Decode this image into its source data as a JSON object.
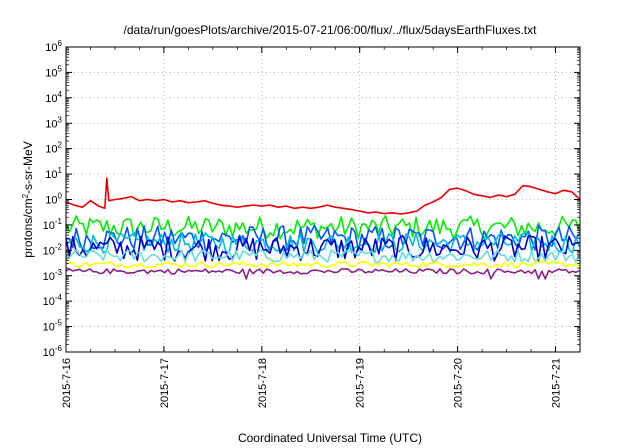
{
  "chart_data": {
    "type": "line",
    "title": "/data/run/goesPlots/archive/2015-07-21/06:00/flux/../flux/5daysEarthFluxes.txt",
    "xlabel": "Coordinated Universal Time (UTC)",
    "ylabel": {
      "text": "protons/cm",
      "sup": "2",
      "rest": "-s-sr-MeV"
    },
    "yscale": "log",
    "ylim": [
      1e-06,
      1000000.0
    ],
    "yticks": [
      {
        "base": "10",
        "exp": "-6"
      },
      {
        "base": "10",
        "exp": "-5"
      },
      {
        "base": "10",
        "exp": "-4"
      },
      {
        "base": "10",
        "exp": "-3"
      },
      {
        "base": "10",
        "exp": "-2"
      },
      {
        "base": "10",
        "exp": "-1"
      },
      {
        "base": "10",
        "exp": "0"
      },
      {
        "base": "10",
        "exp": "1"
      },
      {
        "base": "10",
        "exp": "2"
      },
      {
        "base": "10",
        "exp": "3"
      },
      {
        "base": "10",
        "exp": "4"
      },
      {
        "base": "10",
        "exp": "5"
      },
      {
        "base": "10",
        "exp": "6"
      }
    ],
    "xlim": [
      "2015-07-16T00:00",
      "2015-07-21T06:00"
    ],
    "xticks": [
      "2015-7-16",
      "2015-7-17",
      "2015-7-18",
      "2015-7-19",
      "2015-7-20",
      "2015-7-21"
    ],
    "grid": true,
    "series": [
      {
        "color": "#ee0000",
        "points": [
          [
            "2015-07-16T00:00",
            0.8
          ],
          [
            "2015-07-16T02:00",
            0.6
          ],
          [
            "2015-07-16T04:00",
            0.5
          ],
          [
            "2015-07-16T06:00",
            0.9
          ],
          [
            "2015-07-16T08:00",
            0.55
          ],
          [
            "2015-07-16T09:30",
            0.45
          ],
          [
            "2015-07-16T10:00",
            7.0
          ],
          [
            "2015-07-16T10:30",
            0.9
          ],
          [
            "2015-07-16T12:00",
            1.0
          ],
          [
            "2015-07-16T14:00",
            1.1
          ],
          [
            "2015-07-16T16:00",
            1.3
          ],
          [
            "2015-07-16T18:00",
            0.9
          ],
          [
            "2015-07-16T20:00",
            1.0
          ],
          [
            "2015-07-16T22:00",
            0.9
          ],
          [
            "2015-07-17T00:00",
            1.0
          ],
          [
            "2015-07-17T02:00",
            0.8
          ],
          [
            "2015-07-17T04:00",
            0.9
          ],
          [
            "2015-07-17T06:00",
            0.75
          ],
          [
            "2015-07-17T08:00",
            0.8
          ],
          [
            "2015-07-17T10:00",
            0.9
          ],
          [
            "2015-07-17T12:00",
            0.7
          ],
          [
            "2015-07-17T14:00",
            0.6
          ],
          [
            "2015-07-17T16:00",
            0.55
          ],
          [
            "2015-07-17T18:00",
            0.5
          ],
          [
            "2015-07-17T20:00",
            0.55
          ],
          [
            "2015-07-17T22:00",
            0.6
          ],
          [
            "2015-07-18T00:00",
            0.55
          ],
          [
            "2015-07-18T02:00",
            0.6
          ],
          [
            "2015-07-18T04:00",
            0.5
          ],
          [
            "2015-07-18T06:00",
            0.55
          ],
          [
            "2015-07-18T08:00",
            0.45
          ],
          [
            "2015-07-18T10:00",
            0.5
          ],
          [
            "2015-07-18T12:00",
            0.45
          ],
          [
            "2015-07-18T14:00",
            0.5
          ],
          [
            "2015-07-18T16:00",
            0.6
          ],
          [
            "2015-07-18T18:00",
            0.5
          ],
          [
            "2015-07-18T20:00",
            0.45
          ],
          [
            "2015-07-18T22:00",
            0.4
          ],
          [
            "2015-07-19T00:00",
            0.35
          ],
          [
            "2015-07-19T02:00",
            0.3
          ],
          [
            "2015-07-19T04:00",
            0.32
          ],
          [
            "2015-07-19T06:00",
            0.28
          ],
          [
            "2015-07-19T08:00",
            0.3
          ],
          [
            "2015-07-19T10:00",
            0.27
          ],
          [
            "2015-07-19T12:00",
            0.3
          ],
          [
            "2015-07-19T14:00",
            0.35
          ],
          [
            "2015-07-19T16:00",
            0.6
          ],
          [
            "2015-07-19T18:00",
            0.8
          ],
          [
            "2015-07-19T20:00",
            1.2
          ],
          [
            "2015-07-19T22:00",
            2.5
          ],
          [
            "2015-07-20T00:00",
            2.8
          ],
          [
            "2015-07-20T02:00",
            2.2
          ],
          [
            "2015-07-20T04:00",
            1.6
          ],
          [
            "2015-07-20T06:00",
            1.4
          ],
          [
            "2015-07-20T08:00",
            1.2
          ],
          [
            "2015-07-20T10:00",
            1.5
          ],
          [
            "2015-07-20T12:00",
            1.3
          ],
          [
            "2015-07-20T14:00",
            1.6
          ],
          [
            "2015-07-20T16:00",
            3.5
          ],
          [
            "2015-07-20T18:00",
            3.2
          ],
          [
            "2015-07-20T20:00",
            2.5
          ],
          [
            "2015-07-20T22:00",
            2.0
          ],
          [
            "2015-07-21T00:00",
            1.7
          ],
          [
            "2015-07-21T02:00",
            2.3
          ],
          [
            "2015-07-21T04:00",
            2.0
          ],
          [
            "2015-07-21T06:00",
            1.0
          ]
        ]
      },
      {
        "color": "#00ee00",
        "level": 0.08,
        "spread": 0.45
      },
      {
        "color": "#0055ff",
        "level": 0.03,
        "spread": 0.5
      },
      {
        "color": "#00bbdd",
        "level": 0.02,
        "spread": 0.4
      },
      {
        "color": "#0000cc",
        "level": 0.012,
        "spread": 0.5
      },
      {
        "color": "#66dddd",
        "level": 0.006,
        "spread": 0.25
      },
      {
        "color": "#ffff00",
        "level": 0.0028,
        "spread": 0.12
      },
      {
        "color": "#882288",
        "level": 0.0015,
        "spread": 0.1
      }
    ]
  }
}
